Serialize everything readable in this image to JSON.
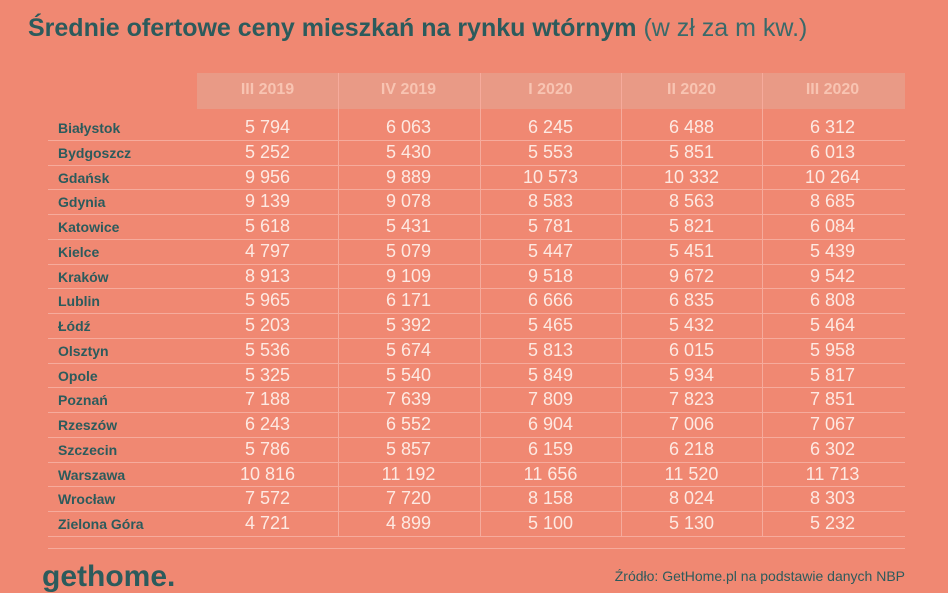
{
  "header": {
    "title": "Średnie ofertowe ceny mieszkań na rynku wtórnym",
    "subtitle": "(w zł za m kw.)"
  },
  "table": {
    "columns": [
      "III 2019",
      "IV 2019",
      "I 2020",
      "II 2020",
      "III 2020"
    ],
    "rows": [
      [
        "Białystok",
        "5 794",
        "6 063",
        "6 245",
        "6 488",
        "6 312"
      ],
      [
        "Bydgoszcz",
        "5 252",
        "5 430",
        "5 553",
        "5 851",
        "6 013"
      ],
      [
        "Gdańsk",
        "9 956",
        "9 889",
        "10 573",
        "10 332",
        "10 264"
      ],
      [
        "Gdynia",
        "9 139",
        "9 078",
        "8 583",
        "8 563",
        "8 685"
      ],
      [
        "Katowice",
        "5 618",
        "5 431",
        "5 781",
        "5 821",
        "6 084"
      ],
      [
        "Kielce",
        "4 797",
        "5 079",
        "5 447",
        "5 451",
        "5 439"
      ],
      [
        "Kraków",
        "8 913",
        "9 109",
        "9 518",
        "9 672",
        "9 542"
      ],
      [
        "Lublin",
        "5 965",
        "6 171",
        "6 666",
        "6 835",
        "6 808"
      ],
      [
        "Łódź",
        "5 203",
        "5 392",
        "5 465",
        "5 432",
        "5 464"
      ],
      [
        "Olsztyn",
        "5 536",
        "5 674",
        "5 813",
        "6 015",
        "5 958"
      ],
      [
        "Opole",
        "5 325",
        "5 540",
        "5 849",
        "5 934",
        "5 817"
      ],
      [
        "Poznań",
        "7 188",
        "7 639",
        "7 809",
        "7 823",
        "7 851"
      ],
      [
        "Rzeszów",
        "6 243",
        "6 552",
        "6 904",
        "7 006",
        "7 067"
      ],
      [
        "Szczecin",
        "5 786",
        "5 857",
        "6 159",
        "6 218",
        "6 302"
      ],
      [
        "Warszawa",
        "10 816",
        "11 192",
        "11 656",
        "11 520",
        "11 713"
      ],
      [
        "Wrocław",
        "7 572",
        "7 720",
        "8 158",
        "8 024",
        "8 303"
      ],
      [
        "Zielona Góra",
        "4 721",
        "4 899",
        "5 100",
        "5 130",
        "5 232"
      ]
    ]
  },
  "footer": {
    "logo": "gethome.",
    "source": "Źródło: GetHome.pl na podstawie danych NBP"
  }
}
